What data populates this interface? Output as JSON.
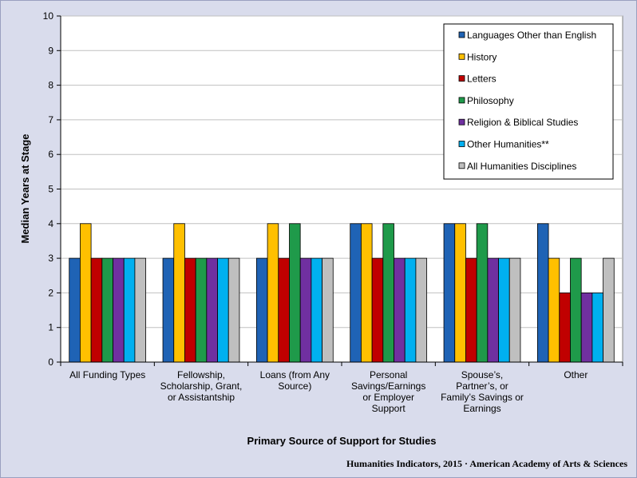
{
  "chart_data": {
    "type": "bar",
    "xlabel": "Primary Source of Support for Studies",
    "ylabel": "Median Years at Stage",
    "ylim": [
      0,
      10
    ],
    "yticks": [
      0,
      1,
      2,
      3,
      4,
      5,
      6,
      7,
      8,
      9,
      10
    ],
    "grid": true,
    "legend_position": "top-right",
    "categories": [
      [
        "All Funding Types"
      ],
      [
        "Fellowship,",
        "Scholarship, Grant,",
        "or Assistantship"
      ],
      [
        "Loans (from Any",
        "Source)"
      ],
      [
        "Personal",
        "Savings/Earnings",
        "or Employer",
        "Support"
      ],
      [
        "Spouse’s,",
        "Partner’s, or",
        "Family’s Savings  or",
        "Earnings"
      ],
      [
        "Other"
      ]
    ],
    "series": [
      {
        "name": "Languages Other than English",
        "color": "#1f63b5",
        "values": [
          3,
          3,
          3,
          4,
          4,
          4
        ]
      },
      {
        "name": "History",
        "color": "#ffc000",
        "values": [
          4,
          4,
          4,
          4,
          4,
          3
        ]
      },
      {
        "name": "Letters",
        "color": "#c00000",
        "values": [
          3,
          3,
          3,
          3,
          3,
          2
        ]
      },
      {
        "name": "Philosophy",
        "color": "#1f9a4a",
        "values": [
          3,
          3,
          4,
          4,
          4,
          3
        ]
      },
      {
        "name": "Religion & Biblical Studies",
        "color": "#7030a0",
        "values": [
          3,
          3,
          3,
          3,
          3,
          2
        ]
      },
      {
        "name": "Other Humanities**",
        "color": "#00b0f0",
        "values": [
          3,
          3,
          3,
          3,
          3,
          2
        ]
      },
      {
        "name": "All Humanities Disciplines",
        "color": "#bfbfbf",
        "values": [
          3,
          3,
          3,
          3,
          3,
          3
        ]
      }
    ]
  },
  "credit": "Humanities Indicators, 2015 · American Academy of Arts & Sciences"
}
